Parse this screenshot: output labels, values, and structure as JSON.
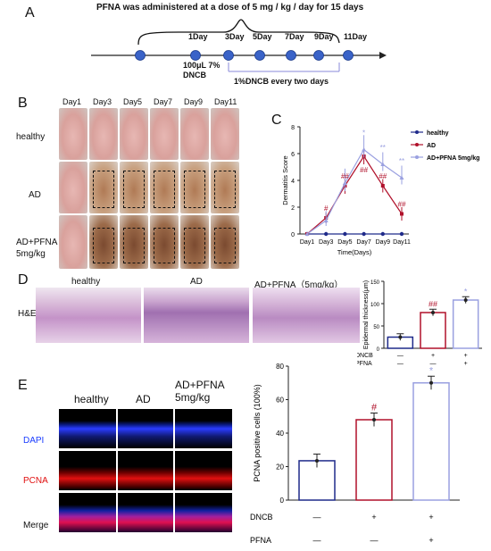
{
  "panelA": {
    "label": "A",
    "title": "PFNA was administered at a dose of 5 mg / kg / day for 15 days",
    "days": [
      "1Day",
      "3Day",
      "5Day",
      "7Day",
      "9Day",
      "11Day"
    ],
    "sensitize": "100μL 7%\nDNCB",
    "challenge": "1%DNCB every two days"
  },
  "panelB": {
    "label": "B",
    "days": [
      "Day1",
      "Day3",
      "Day5",
      "Day7",
      "Day9",
      "Day11"
    ],
    "rows": [
      "healthy",
      "AD",
      "AD+PFNA\n5mg/kg"
    ]
  },
  "panelC": {
    "label": "C",
    "chart_data": {
      "type": "line",
      "categories": [
        "Day1",
        "Day3",
        "Day5",
        "Day7",
        "Day9",
        "Day11"
      ],
      "xlabel": "Time(Days)",
      "ylabel": "Dermatitis Score",
      "ylim": [
        0,
        8
      ],
      "yticks": [
        0,
        2,
        4,
        6,
        8
      ],
      "series": [
        {
          "name": "healthy",
          "values": [
            0,
            0,
            0,
            0,
            0,
            0
          ],
          "color": "#1f2a8a"
        },
        {
          "name": "AD",
          "values": [
            0,
            1.2,
            3.6,
            5.8,
            3.6,
            1.5
          ],
          "color": "#b0102a"
        },
        {
          "name": "AD+PFNA 5mg/kg",
          "values": [
            0,
            1.0,
            3.8,
            6.3,
            5.2,
            4.2
          ],
          "color": "#9aa0e0"
        }
      ],
      "annotations": [
        {
          "x": "Day3",
          "text": "#",
          "color": "#b0102a"
        },
        {
          "x": "Day5",
          "text": "##",
          "color": "#b0102a"
        },
        {
          "x": "Day7",
          "text": "##",
          "color": "#b0102a"
        },
        {
          "x": "Day9",
          "text": "##",
          "color": "#b0102a"
        },
        {
          "x": "Day11",
          "text": "##",
          "color": "#b0102a"
        },
        {
          "x": "Day7",
          "text": "*",
          "color": "#9aa0e0"
        },
        {
          "x": "Day9",
          "text": "**",
          "color": "#9aa0e0"
        },
        {
          "x": "Day11",
          "text": "**",
          "color": "#9aa0e0"
        }
      ],
      "legend": "top-right"
    }
  },
  "panelD": {
    "label": "D",
    "cols": [
      "healthy",
      "AD",
      "AD+PFNA（5mg/kg）"
    ],
    "row": "H&E",
    "chart_data": {
      "type": "bar",
      "categories": [
        "healthy",
        "AD",
        "AD+PFNA"
      ],
      "values": [
        25,
        80,
        108
      ],
      "ylabel": "Epidermal thickness(μm)",
      "ylim": [
        0,
        150
      ],
      "yticks": [
        0,
        50,
        100,
        150
      ],
      "colors": [
        "#1f2a8a",
        "#b0102a",
        "#9aa0e0"
      ],
      "marks": [
        "",
        "##",
        "*"
      ],
      "DNCB": [
        "—",
        "+",
        "+"
      ],
      "PFNA": [
        "—",
        "—",
        "+"
      ]
    }
  },
  "panelE": {
    "label": "E",
    "cols": [
      "healthy",
      "AD",
      "AD+PFNA\n5mg/kg"
    ],
    "rows": [
      {
        "name": "DAPI",
        "color": "#1a3cff"
      },
      {
        "name": "PCNA",
        "color": "#e01010"
      },
      {
        "name": "Merge",
        "color": "#111111"
      }
    ],
    "chart_data": {
      "type": "bar",
      "categories": [
        "healthy",
        "AD",
        "AD+PFNA"
      ],
      "values": [
        23.5,
        48,
        70
      ],
      "ylabel": "PCNA positive cells (100%)",
      "ylim": [
        0,
        80
      ],
      "yticks": [
        0,
        20,
        40,
        60,
        80
      ],
      "colors": [
        "#1f2a8a",
        "#b0102a",
        "#9aa0e0"
      ],
      "marks": [
        "",
        "#",
        "*"
      ],
      "DNCB": [
        "—",
        "+",
        "+"
      ],
      "PFNA": [
        "—",
        "—",
        "+"
      ]
    }
  }
}
